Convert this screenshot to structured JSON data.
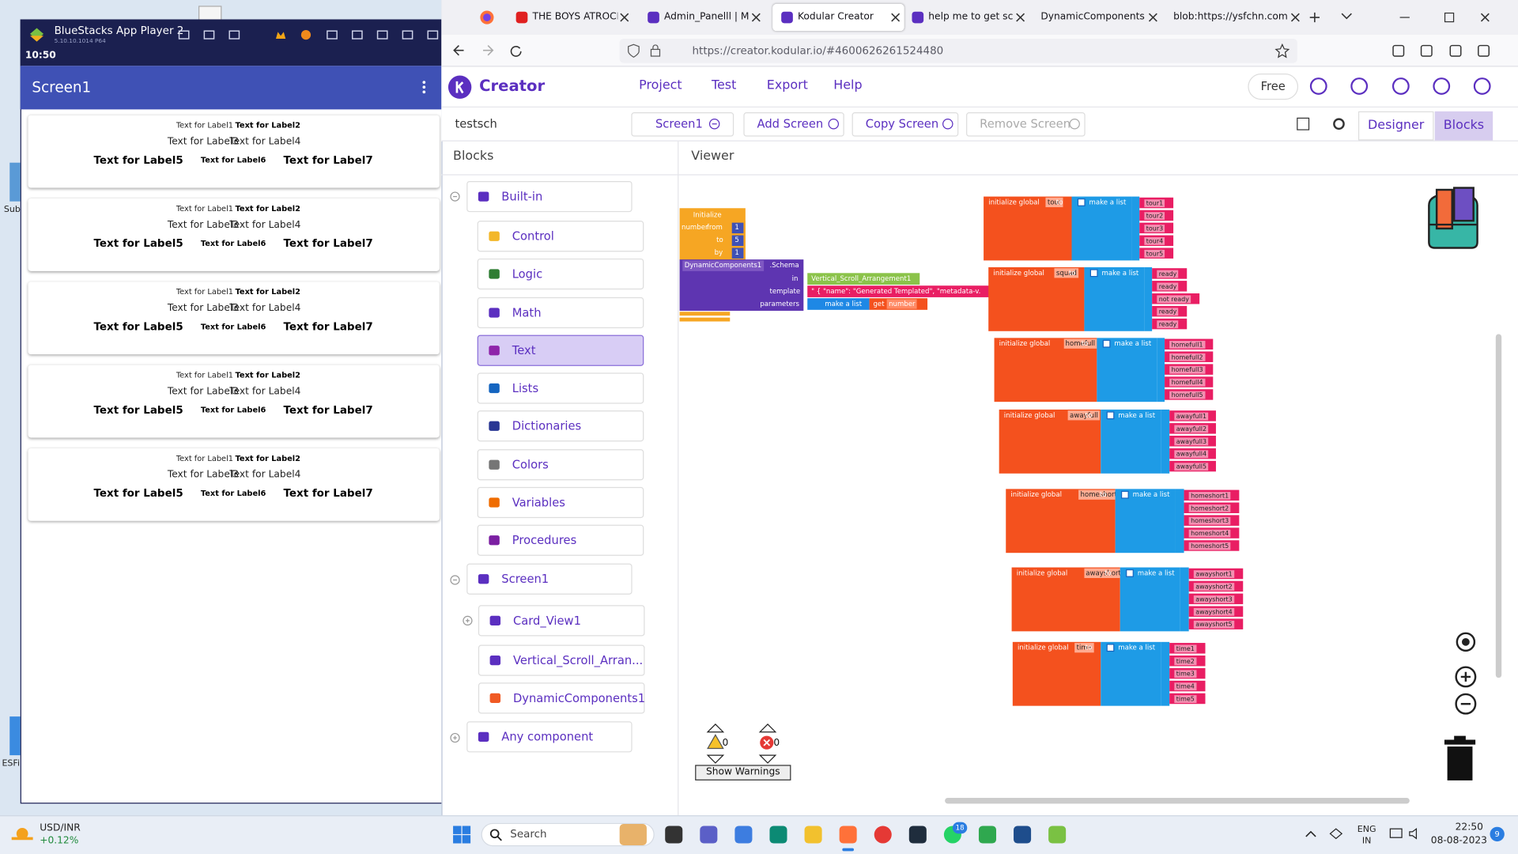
{
  "desktop": {
    "icon_labels": [
      "Sub",
      "ESFi"
    ]
  },
  "bluestacks": {
    "title": "BlueStacks App Player 2",
    "version": "5.10.10.1014 P64",
    "clock": "10:50",
    "screen_title": "Screen1",
    "cards": [
      {
        "labels": [
          "Text for Label1",
          "Text for Label2",
          "Text for Label3",
          "Text for Label4",
          "Text for Label5",
          "Text for Label6",
          "Text for Label7"
        ]
      },
      {
        "labels": [
          "Text for Label1",
          "Text for Label2",
          "Text for Label3",
          "Text for Label4",
          "Text for Label5",
          "Text for Label6",
          "Text for Label7"
        ]
      },
      {
        "labels": [
          "Text for Label1",
          "Text for Label2",
          "Text for Label3",
          "Text for Label4",
          "Text for Label5",
          "Text for Label6",
          "Text for Label7"
        ]
      },
      {
        "labels": [
          "Text for Label1",
          "Text for Label2",
          "Text for Label3",
          "Text for Label4",
          "Text for Label5",
          "Text for Label6",
          "Text for Label7"
        ]
      },
      {
        "labels": [
          "Text for Label1",
          "Text for Label2",
          "Text for Label3",
          "Text for Label4",
          "Text for Label5",
          "Text for Label6",
          "Text for Label7"
        ]
      }
    ]
  },
  "browser": {
    "tabs": [
      "THE BOYS ATROCITI",
      "Admin_Panelll | My l",
      "Kodular Creator",
      "help me to get sche",
      "DynamicComponents Sc",
      "blob:https://ysfchn.com"
    ],
    "url": "https://creator.kodular.io/#4600626261524480"
  },
  "kodular": {
    "brand": "Creator",
    "menu": [
      "Project",
      "Test",
      "Export",
      "Help"
    ],
    "plan": "Free",
    "project": "testsch",
    "screen": "Screen1",
    "screen_actions": [
      "Add Screen",
      "Copy Screen",
      "Remove Screen"
    ],
    "modes": [
      "Designer",
      "Blocks"
    ],
    "panels": {
      "blocks": "Blocks",
      "viewer": "Viewer"
    },
    "builtin": {
      "label": "Built-in",
      "items": [
        "Control",
        "Logic",
        "Math",
        "Text",
        "Lists",
        "Dictionaries",
        "Colors",
        "Variables",
        "Procedures"
      ]
    },
    "components": {
      "screen": "Screen1",
      "children": [
        "Card_View1",
        "Vertical_Scroll_Arran...",
        "DynamicComponents1"
      ],
      "any": "Any component"
    },
    "workspace": {
      "for_block": {
        "label": "Initialize",
        "var": "number",
        "from_label": "from",
        "from": 1,
        "to_label": "to",
        "to": 5,
        "by_label": "by",
        "by": 1
      },
      "schema_block": {
        "component": "DynamicComponents1",
        "property": ".Schema",
        "in_label": "in",
        "in": "Vertical_Scroll_Arrangement1",
        "template_label": "template",
        "template": "\" {  \"name\": \"Generated Templated\",  \"metadata-v.",
        "parameters_label": "parameters",
        "make_list": "make a list",
        "get": "get",
        "get_var": "number"
      },
      "init_label": "initialize global",
      "to_label": "to",
      "list_label": "make a list",
      "globals": [
        {
          "name": "tour",
          "items": [
            "tour1",
            "tour2",
            "tour3",
            "tour4",
            "tour5"
          ]
        },
        {
          "name": "squad",
          "items": [
            "ready",
            "ready",
            "not ready",
            "ready",
            "ready"
          ]
        },
        {
          "name": "homefull",
          "items": [
            "homefull1",
            "homefull2",
            "homefull3",
            "homefull4",
            "homefull5"
          ]
        },
        {
          "name": "awayfull",
          "items": [
            "awayfull1",
            "awayfull2",
            "awayfull3",
            "awayfull4",
            "awayfull5"
          ]
        },
        {
          "name": "homeshort",
          "items": [
            "homeshort1",
            "homeshort2",
            "homeshort3",
            "homeshort4",
            "homeshort5"
          ]
        },
        {
          "name": "awayshort",
          "items": [
            "awayshort1",
            "awayshort2",
            "awayshort3",
            "awayshort4",
            "awayshort5"
          ]
        },
        {
          "name": "time",
          "items": [
            "time1",
            "time2",
            "time3",
            "time4",
            "time5"
          ]
        }
      ]
    },
    "warnings": {
      "warning_count": 0,
      "error_count": 0,
      "button": "Show Warnings"
    }
  },
  "taskbar": {
    "ticker": "USD/INR",
    "change": "+0.12%",
    "search": "Search",
    "badge": 18,
    "language": "ENG",
    "region": "IN",
    "time": "22:50",
    "date": "08-08-2023",
    "notifications": 9
  }
}
